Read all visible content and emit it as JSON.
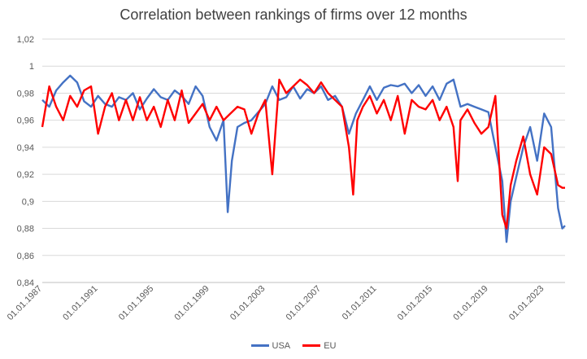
{
  "chart_data": {
    "type": "line",
    "title": "Correlation between rankings of firms over 12 months",
    "xlabel": "",
    "ylabel": "",
    "x_ticks": [
      "01.01.1987",
      "01.01.1991",
      "01.01.1995",
      "01.01.1999",
      "01.01.2003",
      "01.01.2007",
      "01.01.2011",
      "01.01.2015",
      "01.01.2019",
      "01.01.2023"
    ],
    "y_ticks": [
      "0,84",
      "0,86",
      "0,88",
      "0,9",
      "0,92",
      "0,94",
      "0,96",
      "0,98",
      "1",
      "1,02"
    ],
    "ylim": [
      0.84,
      1.02
    ],
    "xlim": [
      1987.0,
      2024.5
    ],
    "grid": true,
    "legend_position": "bottom",
    "series": [
      {
        "name": "USA",
        "color": "#4472C4",
        "x": [
          1987.0,
          1987.5,
          1988.0,
          1988.5,
          1989.0,
          1989.5,
          1990.0,
          1990.5,
          1991.0,
          1991.5,
          1992.0,
          1992.5,
          1993.0,
          1993.5,
          1994.0,
          1994.5,
          1995.0,
          1995.5,
          1996.0,
          1996.5,
          1997.0,
          1997.5,
          1998.0,
          1998.5,
          1999.0,
          1999.5,
          2000.0,
          2000.3,
          2000.6,
          2001.0,
          2001.5,
          2002.0,
          2002.5,
          2003.0,
          2003.5,
          2004.0,
          2004.5,
          2005.0,
          2005.5,
          2006.0,
          2006.5,
          2007.0,
          2007.5,
          2008.0,
          2008.5,
          2009.0,
          2009.5,
          2010.0,
          2010.5,
          2011.0,
          2011.5,
          2012.0,
          2012.5,
          2013.0,
          2013.5,
          2014.0,
          2014.5,
          2015.0,
          2015.5,
          2016.0,
          2016.5,
          2017.0,
          2017.5,
          2018.0,
          2018.5,
          2019.0,
          2019.5,
          2020.0,
          2020.3,
          2020.6,
          2021.0,
          2021.5,
          2022.0,
          2022.5,
          2023.0,
          2023.5,
          2024.0,
          2024.3,
          2024.5
        ],
        "values": [
          0.975,
          0.97,
          0.982,
          0.988,
          0.993,
          0.988,
          0.974,
          0.97,
          0.978,
          0.972,
          0.97,
          0.977,
          0.975,
          0.98,
          0.968,
          0.976,
          0.983,
          0.977,
          0.975,
          0.982,
          0.978,
          0.972,
          0.985,
          0.978,
          0.955,
          0.945,
          0.96,
          0.892,
          0.93,
          0.955,
          0.958,
          0.96,
          0.966,
          0.972,
          0.985,
          0.975,
          0.977,
          0.985,
          0.976,
          0.983,
          0.98,
          0.985,
          0.975,
          0.978,
          0.97,
          0.95,
          0.965,
          0.975,
          0.985,
          0.975,
          0.984,
          0.986,
          0.985,
          0.987,
          0.98,
          0.986,
          0.978,
          0.985,
          0.975,
          0.987,
          0.99,
          0.97,
          0.972,
          0.97,
          0.968,
          0.966,
          0.94,
          0.915,
          0.87,
          0.9,
          0.918,
          0.94,
          0.955,
          0.93,
          0.965,
          0.955,
          0.895,
          0.88,
          0.882
        ]
      },
      {
        "name": "EU",
        "color": "#FF0000",
        "x": [
          1987.0,
          1987.5,
          1988.0,
          1988.5,
          1989.0,
          1989.5,
          1990.0,
          1990.5,
          1991.0,
          1991.5,
          1992.0,
          1992.5,
          1993.0,
          1993.5,
          1994.0,
          1994.5,
          1995.0,
          1995.5,
          1996.0,
          1996.5,
          1997.0,
          1997.5,
          1998.0,
          1998.5,
          1999.0,
          1999.5,
          2000.0,
          2000.5,
          2001.0,
          2001.5,
          2002.0,
          2002.5,
          2003.0,
          2003.5,
          2004.0,
          2004.5,
          2005.0,
          2005.5,
          2006.0,
          2006.5,
          2007.0,
          2007.5,
          2008.0,
          2008.5,
          2009.0,
          2009.3,
          2009.6,
          2010.0,
          2010.5,
          2011.0,
          2011.5,
          2012.0,
          2012.5,
          2013.0,
          2013.5,
          2014.0,
          2014.5,
          2015.0,
          2015.5,
          2016.0,
          2016.5,
          2016.8,
          2017.0,
          2017.5,
          2018.0,
          2018.5,
          2019.0,
          2019.5,
          2020.0,
          2020.3,
          2020.6,
          2021.0,
          2021.5,
          2022.0,
          2022.5,
          2023.0,
          2023.5,
          2024.0,
          2024.3,
          2024.5
        ],
        "values": [
          0.955,
          0.985,
          0.97,
          0.96,
          0.978,
          0.97,
          0.982,
          0.985,
          0.95,
          0.97,
          0.98,
          0.96,
          0.975,
          0.96,
          0.977,
          0.96,
          0.97,
          0.955,
          0.975,
          0.96,
          0.982,
          0.958,
          0.965,
          0.972,
          0.96,
          0.97,
          0.96,
          0.965,
          0.97,
          0.968,
          0.95,
          0.965,
          0.975,
          0.92,
          0.99,
          0.98,
          0.985,
          0.99,
          0.986,
          0.98,
          0.988,
          0.98,
          0.975,
          0.97,
          0.94,
          0.905,
          0.96,
          0.97,
          0.978,
          0.965,
          0.975,
          0.96,
          0.978,
          0.95,
          0.975,
          0.97,
          0.968,
          0.975,
          0.96,
          0.97,
          0.955,
          0.915,
          0.96,
          0.968,
          0.958,
          0.95,
          0.955,
          0.978,
          0.89,
          0.88,
          0.912,
          0.93,
          0.948,
          0.92,
          0.905,
          0.94,
          0.935,
          0.912,
          0.91,
          0.91
        ]
      }
    ]
  }
}
